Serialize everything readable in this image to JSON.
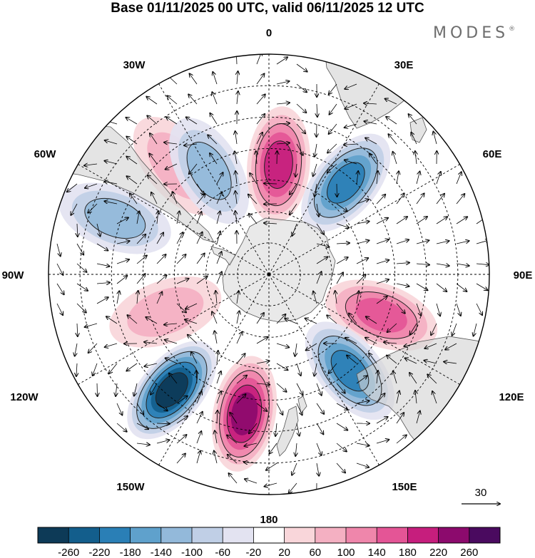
{
  "title": "Base 01/11/2025 00 UTC, valid 06/11/2025 12 UTC",
  "brand": {
    "name": "MODES",
    "mark": "®"
  },
  "longitude_labels": {
    "top": "0",
    "upper_left": "30W",
    "upper_right": "30E",
    "left_upper": "60W",
    "right_upper": "60E",
    "left": "90W",
    "right": "90E",
    "left_lower": "120W",
    "right_lower": "120E",
    "lower_left": "150W",
    "lower_right": "150E",
    "bottom": "180"
  },
  "vector_reference": {
    "label": "30"
  },
  "colorbar": {
    "ticks": [
      "-260",
      "-220",
      "-180",
      "-140",
      "-100",
      "-60",
      "-20",
      "20",
      "60",
      "100",
      "140",
      "180",
      "220",
      "260"
    ],
    "colors": [
      "#0d3a57",
      "#135e8c",
      "#2a7fb6",
      "#5fa1cc",
      "#93b9da",
      "#c0cfe6",
      "#e3e3f1",
      "#ffffff",
      "#f9d6da",
      "#f4b0c2",
      "#ef86ab",
      "#e45596",
      "#c61e7d",
      "#8c0a6d",
      "#4a0a5f"
    ]
  },
  "anomaly_centers": [
    {
      "lon": 5,
      "lat": -55,
      "value": 200
    },
    {
      "lon": 40,
      "lat": -52,
      "value": -180
    },
    {
      "lon": 110,
      "lat": -52,
      "value": 170
    },
    {
      "lon": 140,
      "lat": -50,
      "value": -180
    },
    {
      "lon": 190,
      "lat": -45,
      "value": 230
    },
    {
      "lon": 220,
      "lat": -42,
      "value": -260
    },
    {
      "lon": 250,
      "lat": -55,
      "value": 80
    },
    {
      "lon": 290,
      "lat": -38,
      "value": -120
    },
    {
      "lon": 320,
      "lat": -45,
      "value": 60
    },
    {
      "lon": 330,
      "lat": -52,
      "value": -120
    }
  ]
}
